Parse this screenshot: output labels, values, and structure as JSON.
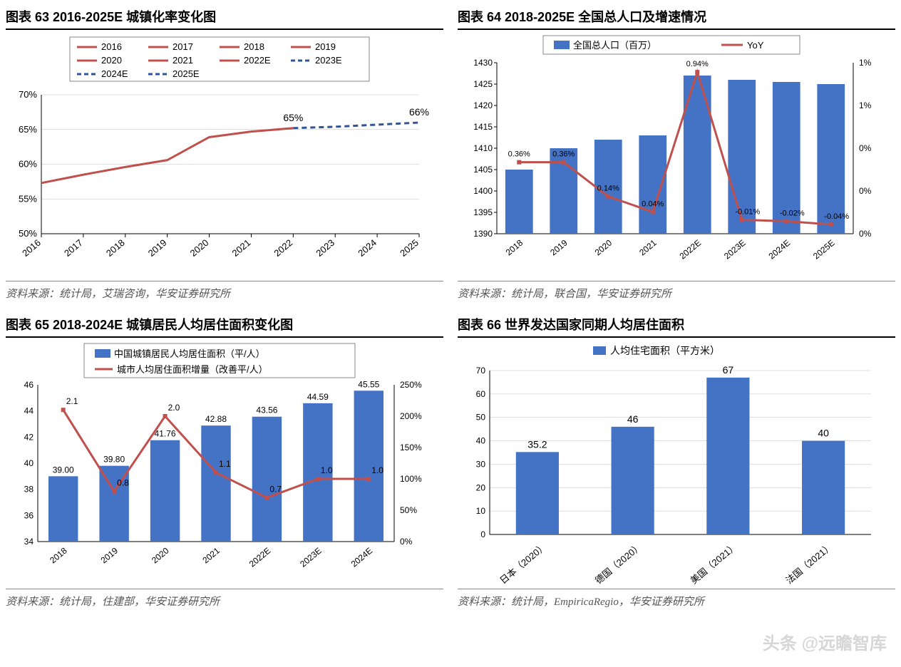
{
  "colors": {
    "bar": "#4472c4",
    "line": "#c0504d",
    "axis": "#000000",
    "grid": "#bfbfbf",
    "text": "#000000",
    "dash": "#2f5597"
  },
  "chart63": {
    "title": "图表 63 2016-2025E 城镇化率变化图",
    "source": "资料来源：统计局，艾瑞咨询，华安证券研究所",
    "type": "line",
    "legend": [
      "2016",
      "2017",
      "2018",
      "2019",
      "2020",
      "2021",
      "2022E",
      "2023E",
      "2024E",
      "2025E"
    ],
    "legend_dashed_from": 7,
    "x": [
      "2016",
      "2017",
      "2018",
      "2019",
      "2020",
      "2021",
      "2022",
      "2023",
      "2024",
      "2025"
    ],
    "y": [
      57.3,
      58.5,
      59.6,
      60.6,
      63.9,
      64.7,
      65.2,
      65.4,
      65.7,
      66.0
    ],
    "solid_until_index": 6,
    "ylim": [
      50,
      70
    ],
    "ytick_step": 5,
    "y_suffix": "%",
    "annotations": [
      {
        "i": 6,
        "text": "65%",
        "dy": -10
      },
      {
        "i": 9,
        "text": "66%",
        "dy": -10
      }
    ]
  },
  "chart64": {
    "title": "图表 64 2018-2025E 全国总人口及增速情况",
    "source": "资料来源：统计局，联合国，华安证券研究所",
    "type": "combo",
    "legend_bar": "全国总人口（百万）",
    "legend_line": "YoY",
    "x": [
      "2018",
      "2019",
      "2020",
      "2021",
      "2022E",
      "2023E",
      "2024E",
      "2025E"
    ],
    "bars": [
      1405,
      1410,
      1412,
      1413,
      1427,
      1426,
      1425.5,
      1425
    ],
    "line_vals": [
      0.36,
      0.36,
      0.14,
      0.04,
      0.94,
      -0.01,
      -0.02,
      -0.04
    ],
    "ylim_l": [
      1390,
      1430
    ],
    "ytick_l": 5,
    "ylim_r": [
      0,
      1
    ],
    "ytick_r_labels": [
      "0%",
      "0%",
      "0%",
      "1%",
      "1%"
    ],
    "line_labels": [
      "0.36%",
      "0.36%",
      "0.14%",
      "0.04%",
      "0.94%",
      "-0.01%",
      "-0.02%",
      "-0.04%"
    ]
  },
  "chart65": {
    "title": "图表 65 2018-2024E 城镇居民人均居住面积变化图",
    "source": "资料来源：统计局，住建部，华安证券研究所",
    "type": "combo",
    "legend_bar": "中国城镇居民人均居住面积（平/人）",
    "legend_line": "城市人均居住面积增量（改善平/人）",
    "x": [
      "2018",
      "2019",
      "2020",
      "2021",
      "2022E",
      "2023E",
      "2024E"
    ],
    "bars": [
      39.0,
      39.8,
      41.76,
      42.88,
      43.56,
      44.59,
      45.55
    ],
    "bar_labels": [
      "39.00",
      "39.80",
      "41.76",
      "42.88",
      "43.56",
      "44.59",
      "45.55"
    ],
    "line_vals": [
      2.1,
      0.8,
      2.0,
      1.1,
      0.7,
      1.0,
      1.0
    ],
    "line_labels": [
      "2.1",
      "0.8",
      "2.0",
      "1.1",
      "0.7",
      "1.0",
      "1.0"
    ],
    "ylim_l": [
      34,
      46
    ],
    "ytick_l": 2,
    "ylim_r": [
      0,
      250
    ],
    "ytick_r": 50,
    "r_suffix": "%"
  },
  "chart66": {
    "title": "图表 66 世界发达国家同期人均居住面积",
    "source": "资料来源：统计局，EmpiricaRegio，华安证券研究所",
    "type": "bar",
    "legend": "人均住宅面积（平方米）",
    "x": [
      "日本（2020）",
      "德国（2020）",
      "美国（2021）",
      "法国（2021）"
    ],
    "vals": [
      35.2,
      46,
      67,
      40
    ],
    "labels": [
      "35.2",
      "46",
      "67",
      "40"
    ],
    "ylim": [
      0,
      70
    ],
    "ytick": 10
  },
  "watermark": "头条 @远瞻智库"
}
